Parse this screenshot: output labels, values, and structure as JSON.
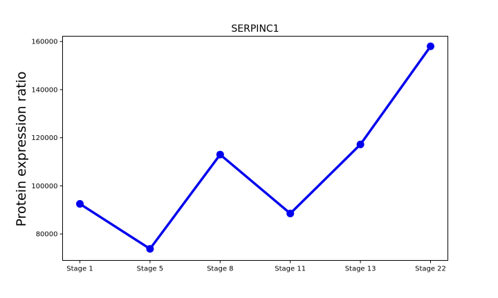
{
  "chart_data": {
    "type": "line",
    "title": "SERPINC1",
    "xlabel": "",
    "ylabel": "Protein expression ratio",
    "categories": [
      "Stage 1",
      "Stage 5",
      "Stage 8",
      "Stage 11",
      "Stage 13",
      "Stage 22"
    ],
    "series": [
      {
        "values": [
          92500,
          73800,
          113000,
          88500,
          117200,
          158000
        ]
      }
    ],
    "y_ticks": [
      80000,
      100000,
      120000,
      140000,
      160000
    ],
    "ylim": [
      69000,
      162200
    ],
    "grid": false,
    "line_color": "#0000ee",
    "marker": "circle"
  }
}
